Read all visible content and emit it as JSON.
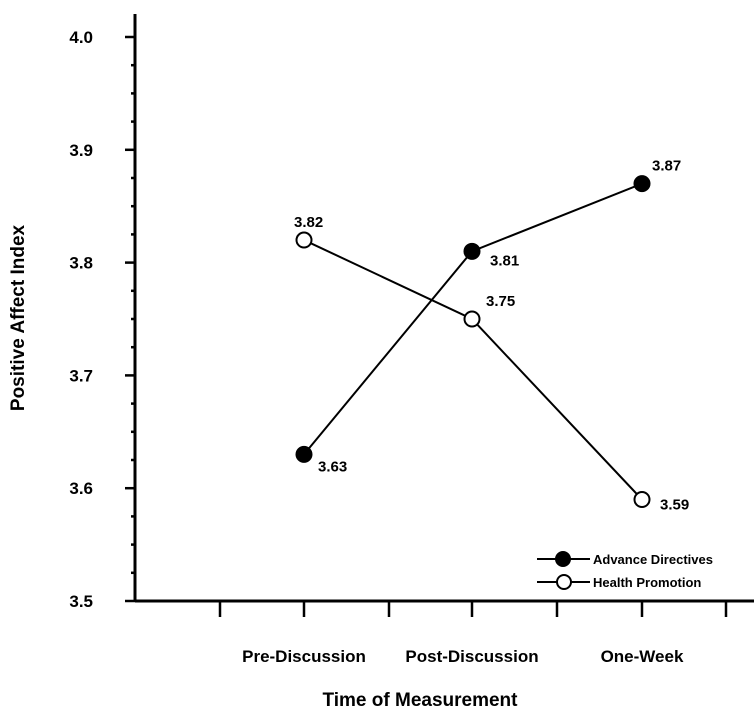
{
  "chart_data": {
    "type": "line",
    "categories": [
      "Pre-Discussion",
      "Post-Discussion",
      "One-Week"
    ],
    "xlabel": "Time of Measurement",
    "ylabel": "Positive Affect Index",
    "ylim": [
      3.5,
      4.0
    ],
    "yticks": [
      "3.5",
      "3.6",
      "3.7",
      "3.8",
      "3.9",
      "4.0"
    ],
    "legend_position": "bottom-right",
    "series": [
      {
        "name": "Advance Directives",
        "values": [
          3.63,
          3.81,
          3.87
        ],
        "labels": [
          "3.63",
          "3.81",
          "3.87"
        ],
        "marker": "filled-circle",
        "color": "#000000"
      },
      {
        "name": "Health Promotion",
        "values": [
          3.82,
          3.75,
          3.59
        ],
        "labels": [
          "3.82",
          "3.75",
          "3.59"
        ],
        "marker": "open-circle",
        "color": "#000000"
      }
    ]
  }
}
